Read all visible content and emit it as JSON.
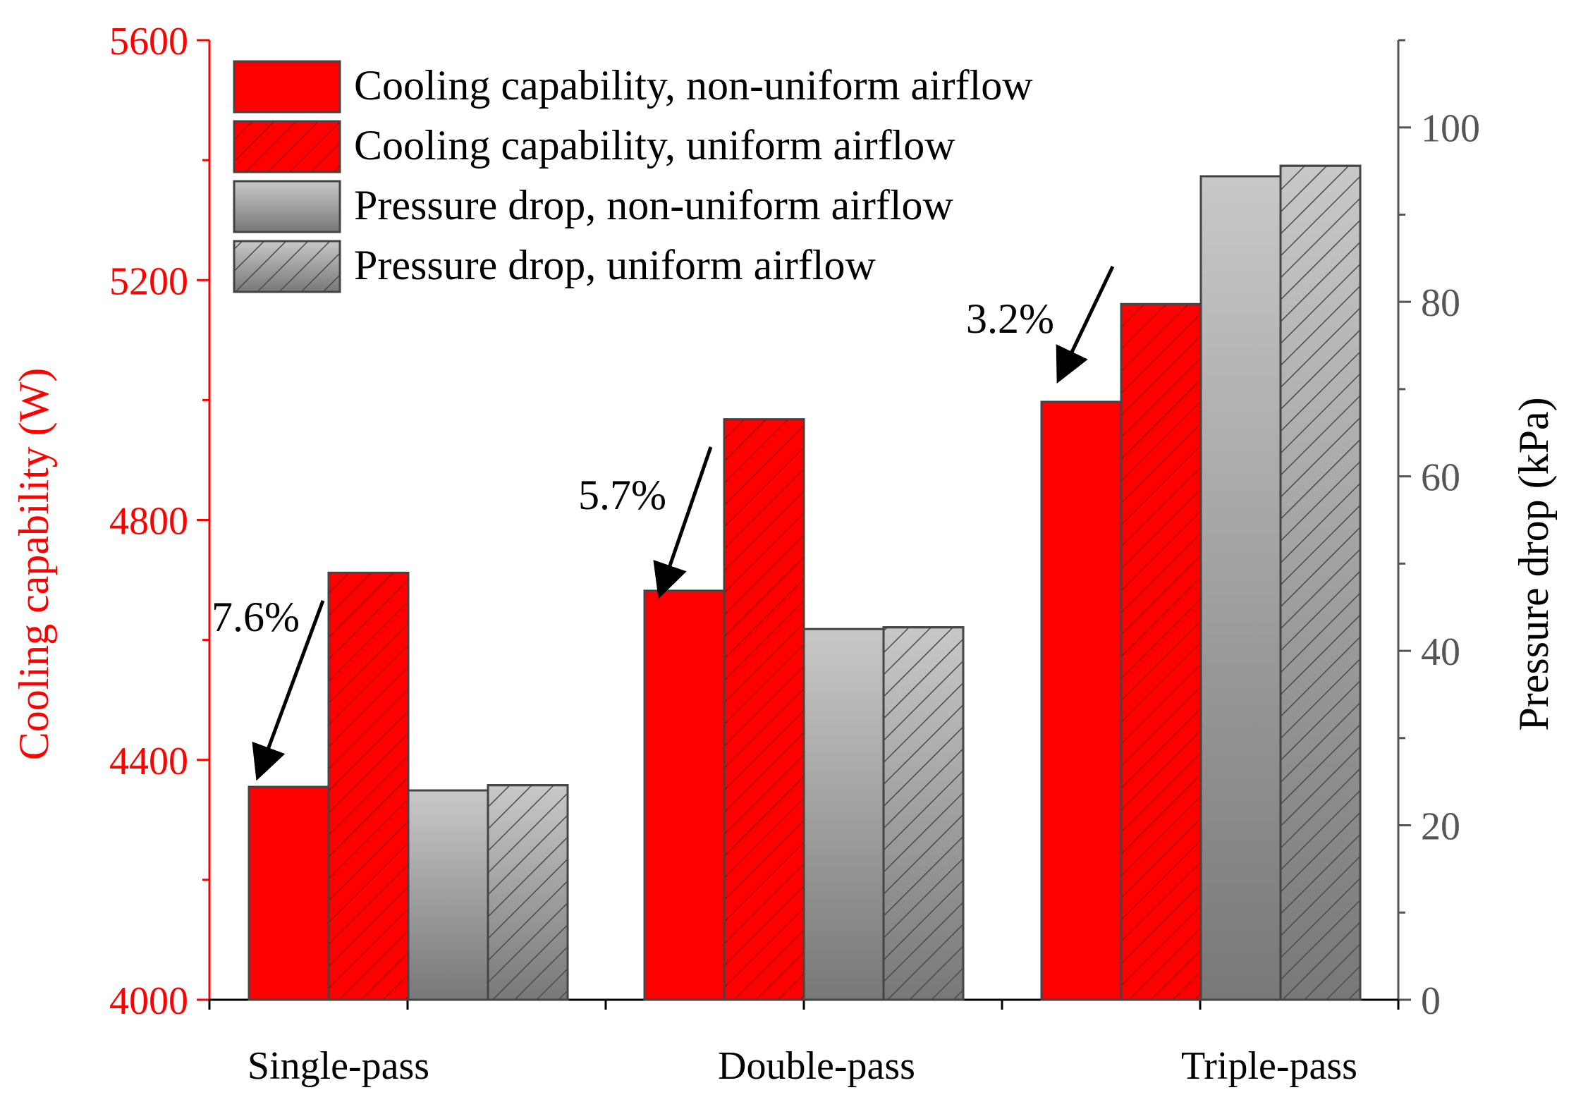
{
  "chart_data": {
    "type": "bar",
    "categories": [
      "Single-pass",
      "Double-pass",
      "Triple-pass"
    ],
    "left_axis": {
      "label": "Cooling capability (W)",
      "ylim": [
        4000,
        5600
      ],
      "ticks": [
        4000,
        4400,
        4800,
        5200,
        5600
      ],
      "color": "#ff0000"
    },
    "right_axis": {
      "label": "Pressure drop (kPa)",
      "ylim": [
        0,
        110
      ],
      "ticks": [
        0,
        20,
        40,
        60,
        80,
        100
      ],
      "color": "#555555"
    },
    "series": [
      {
        "name": "Cooling capability, non-uniform airflow",
        "axis": "left",
        "style": "solid-red",
        "values": [
          4355,
          4682,
          4997
        ]
      },
      {
        "name": "Cooling capability, uniform airflow",
        "axis": "left",
        "style": "hatched-red",
        "values": [
          4712,
          4968,
          5160
        ]
      },
      {
        "name": "Pressure drop, non-uniform airflow",
        "axis": "right",
        "style": "gradient-gray",
        "values": [
          24.0,
          42.5,
          94.4
        ]
      },
      {
        "name": "Pressure drop, uniform airflow",
        "axis": "right",
        "style": "hatched-gray",
        "values": [
          24.6,
          42.7,
          95.6
        ]
      }
    ],
    "annotations": [
      {
        "text": "7.6%",
        "category": 0
      },
      {
        "text": "5.7%",
        "category": 1
      },
      {
        "text": "3.2%",
        "category": 2
      }
    ],
    "legend": "top-left",
    "grid": false
  }
}
